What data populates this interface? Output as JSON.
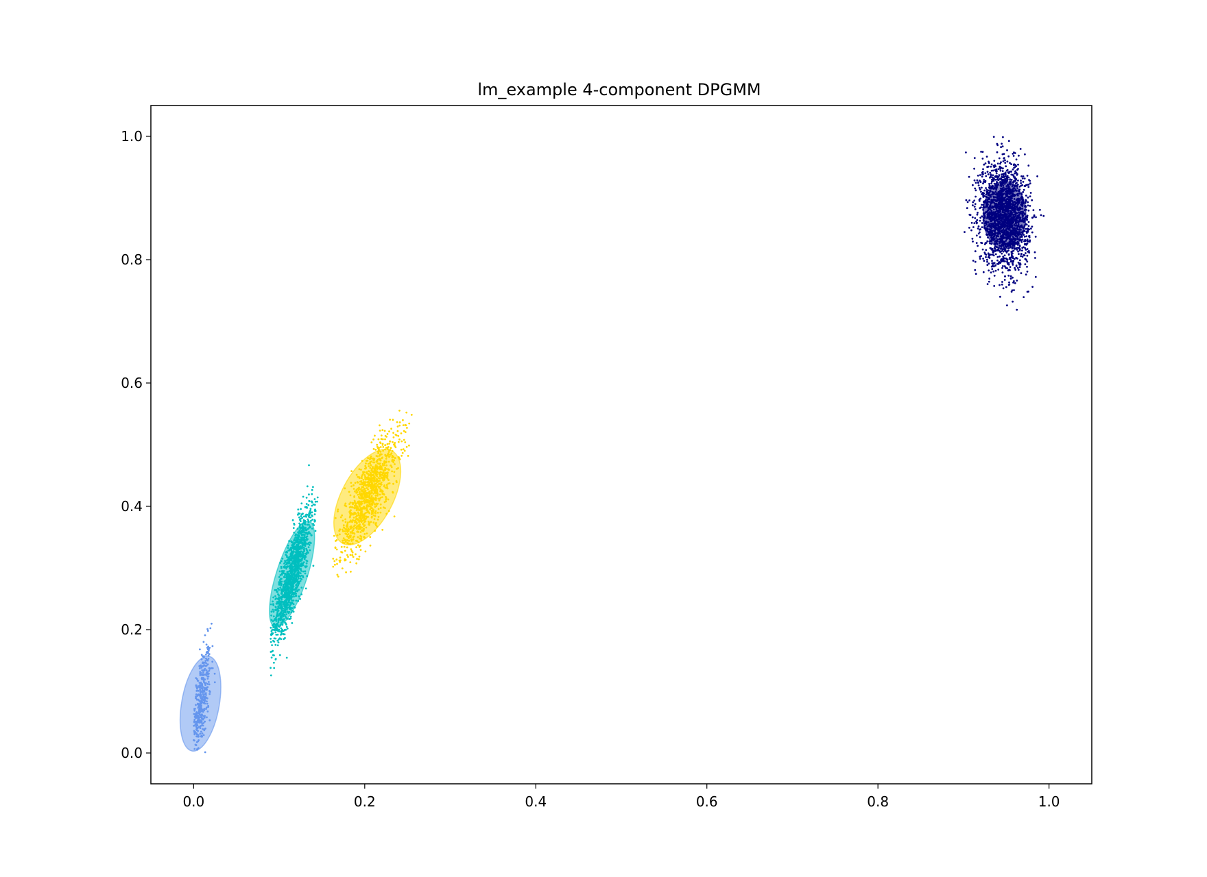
{
  "chart_data": {
    "type": "scatter",
    "title": "lm_example 4-component DPGMM",
    "xlabel": "",
    "ylabel": "",
    "xlim": [
      -0.05,
      1.05
    ],
    "ylim": [
      -0.05,
      1.05
    ],
    "xticks": [
      0.0,
      0.2,
      0.4,
      0.6,
      0.8,
      1.0
    ],
    "xtick_labels": [
      "0.0",
      "0.2",
      "0.4",
      "0.6",
      "0.8",
      "1.0"
    ],
    "yticks": [
      0.0,
      0.2,
      0.4,
      0.6,
      0.8,
      1.0
    ],
    "ytick_labels": [
      "0.0",
      "0.2",
      "0.4",
      "0.6",
      "0.8",
      "1.0"
    ],
    "grid": false,
    "legend": "none",
    "clusters": [
      {
        "color": "#6495ED",
        "center": [
          0.008,
          0.08
        ],
        "spread": [
          0.006,
          0.045
        ],
        "correlation": 0.6,
        "range_x": [
          0.0,
          0.025
        ],
        "range_y": [
          0.0,
          0.275
        ],
        "ellipse": {
          "center": [
            0.008,
            0.08
          ],
          "half_width": 0.022,
          "half_height": 0.078,
          "angle_deg": 10,
          "opacity": 0.5
        }
      },
      {
        "color": "#00BFBF",
        "center": [
          0.115,
          0.29
        ],
        "spread": [
          0.012,
          0.055
        ],
        "correlation": 0.85,
        "range_x": [
          0.09,
          0.145
        ],
        "range_y": [
          0.12,
          0.495
        ],
        "ellipse": {
          "center": [
            0.115,
            0.29
          ],
          "half_width": 0.018,
          "half_height": 0.09,
          "angle_deg": 18,
          "opacity": 0.5
        }
      },
      {
        "color": "#FFD700",
        "center": [
          0.205,
          0.42
        ],
        "spread": [
          0.018,
          0.05
        ],
        "correlation": 0.8,
        "range_x": [
          0.16,
          0.255
        ],
        "range_y": [
          0.245,
          0.56
        ],
        "ellipse": {
          "center": [
            0.203,
            0.415
          ],
          "half_width": 0.03,
          "half_height": 0.085,
          "angle_deg": 28,
          "opacity": 0.5
        }
      },
      {
        "color": "#000080",
        "center": [
          0.948,
          0.87
        ],
        "spread": [
          0.014,
          0.042
        ],
        "correlation": -0.1,
        "range_x": [
          0.9,
          0.995
        ],
        "range_y": [
          0.71,
          1.0
        ],
        "ellipse": {
          "center": [
            0.948,
            0.872
          ],
          "half_width": 0.025,
          "half_height": 0.055,
          "angle_deg": 0,
          "opacity": 0.5
        }
      }
    ]
  }
}
